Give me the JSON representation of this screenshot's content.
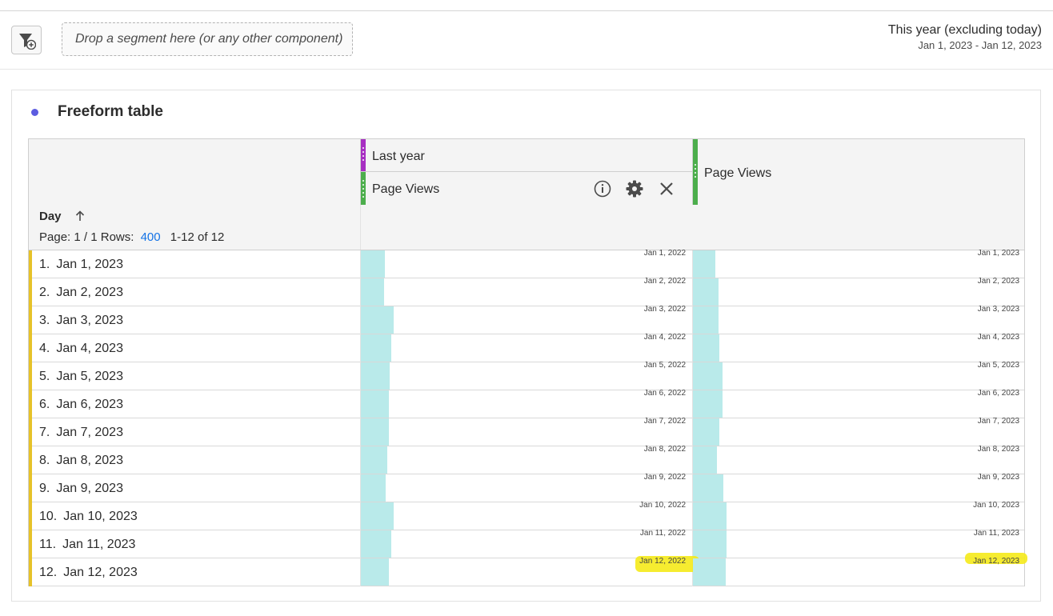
{
  "filterbar": {
    "dropzone_text": "Drop a segment here (or any other component)",
    "date_range_title": "This year (excluding today)",
    "date_range_dates": "Jan 1, 2023 - Jan 12, 2023"
  },
  "panel": {
    "title": "Freeform table"
  },
  "table": {
    "columns": [
      {
        "segment": "Last year",
        "metric": "Page Views"
      },
      {
        "metric": "Page Views"
      }
    ],
    "dimension": "Day",
    "pager": {
      "page": "Page: 1 / 1",
      "rows_label": "Rows:",
      "rows_value": "400",
      "range": "1-12 of 12"
    },
    "rows": [
      {
        "num": "1.",
        "day": "Jan 1, 2023",
        "c1": "Jan 1, 2022",
        "c2": "Jan 1, 2023",
        "bar1": 0.072,
        "bar2": 0.067
      },
      {
        "num": "2.",
        "day": "Jan 2, 2023",
        "c1": "Jan 2, 2022",
        "c2": "Jan 2, 2023",
        "bar1": 0.07,
        "bar2": 0.077
      },
      {
        "num": "3.",
        "day": "Jan 3, 2023",
        "c1": "Jan 3, 2022",
        "c2": "Jan 3, 2023",
        "bar1": 0.099,
        "bar2": 0.077
      },
      {
        "num": "4.",
        "day": "Jan 4, 2023",
        "c1": "Jan 4, 2022",
        "c2": "Jan 4, 2023",
        "bar1": 0.092,
        "bar2": 0.08
      },
      {
        "num": "5.",
        "day": "Jan 5, 2023",
        "c1": "Jan 5, 2022",
        "c2": "Jan 5, 2023",
        "bar1": 0.087,
        "bar2": 0.089
      },
      {
        "num": "6.",
        "day": "Jan 6, 2023",
        "c1": "Jan 6, 2022",
        "c2": "Jan 6, 2023",
        "bar1": 0.084,
        "bar2": 0.089
      },
      {
        "num": "7.",
        "day": "Jan 7, 2023",
        "c1": "Jan 7, 2022",
        "c2": "Jan 7, 2023",
        "bar1": 0.084,
        "bar2": 0.08
      },
      {
        "num": "8.",
        "day": "Jan 8, 2023",
        "c1": "Jan 8, 2022",
        "c2": "Jan 8, 2023",
        "bar1": 0.08,
        "bar2": 0.072
      },
      {
        "num": "9.",
        "day": "Jan 9, 2023",
        "c1": "Jan 9, 2022",
        "c2": "Jan 9, 2023",
        "bar1": 0.075,
        "bar2": 0.092
      },
      {
        "num": "10.",
        "day": "Jan 10, 2023",
        "c1": "Jan 10, 2022",
        "c2": "Jan 10, 2023",
        "bar1": 0.099,
        "bar2": 0.101
      },
      {
        "num": "11.",
        "day": "Jan 11, 2023",
        "c1": "Jan 11, 2022",
        "c2": "Jan 11, 2023",
        "bar1": 0.092,
        "bar2": 0.101
      },
      {
        "num": "12.",
        "day": "Jan 12, 2023",
        "c1": "Jan 12, 2022",
        "c2": "Jan 12, 2023",
        "bar1": 0.084,
        "bar2": 0.099,
        "highlighted": true
      }
    ]
  },
  "colors": {
    "segment_bar": "#a72fc2",
    "metric_bar": "#4cae4c",
    "row_marker": "#e6c229",
    "cell_bar": "#b9eaea",
    "highlight": "#f5ea1a",
    "link": "#1473e6"
  },
  "icons": [
    "filter-add-icon",
    "info-icon",
    "gear-icon",
    "close-icon",
    "sort-ascending-icon",
    "drag-handle-icon"
  ]
}
